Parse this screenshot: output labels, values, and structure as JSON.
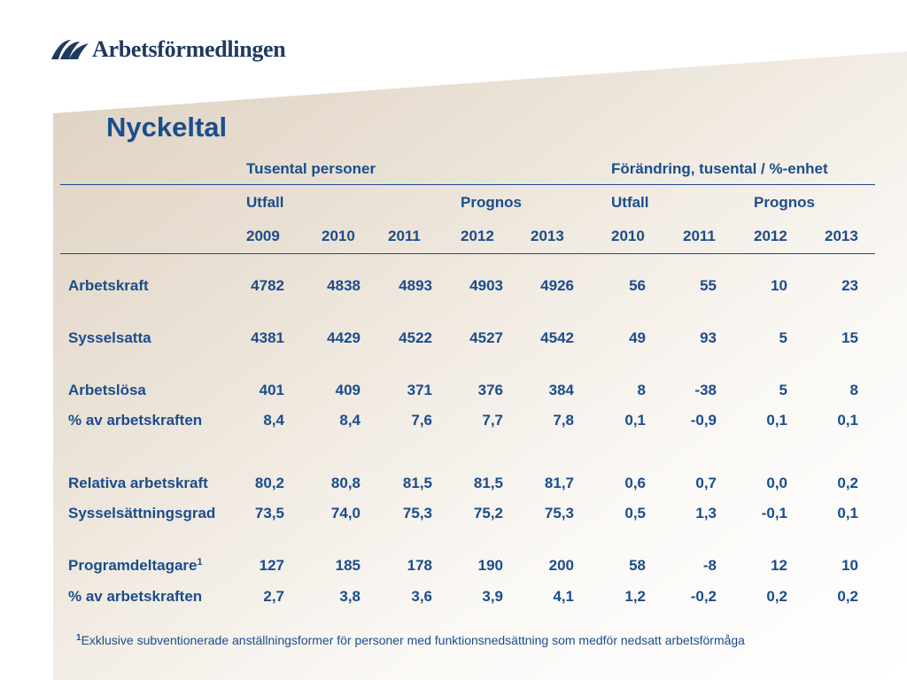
{
  "logo": {
    "text": "Arbetsförmedlingen"
  },
  "title": "Nyckeltal",
  "header": {
    "group1": "Tusental personer",
    "group2": "Förändring, tusental / %-enhet",
    "utfall": "Utfall",
    "prognos": "Prognos",
    "utfall2": "Utfall",
    "prognos2": "Prognos",
    "years": [
      "2009",
      "2010",
      "2011",
      "2012",
      "2013",
      "2010",
      "2011",
      "2012",
      "2013"
    ]
  },
  "rows": [
    {
      "label": "Arbetskraft",
      "values": [
        "4782",
        "4838",
        "4893",
        "4903",
        "4926",
        "56",
        "55",
        "10",
        "23"
      ]
    },
    {
      "label": "Sysselsatta",
      "values": [
        "4381",
        "4429",
        "4522",
        "4527",
        "4542",
        "49",
        "93",
        "5",
        "15"
      ]
    },
    {
      "label": "Arbetslösa",
      "values": [
        "401",
        "409",
        "371",
        "376",
        "384",
        "8",
        "-38",
        "5",
        "8"
      ]
    },
    {
      "label": "% av arbetskraften",
      "values": [
        "8,4",
        "8,4",
        "7,6",
        "7,7",
        "7,8",
        "0,1",
        "-0,9",
        "0,1",
        "0,1"
      ]
    },
    {
      "label": "Relativa arbetskraft",
      "values": [
        "80,2",
        "80,8",
        "81,5",
        "81,5",
        "81,7",
        "0,6",
        "0,7",
        "0,0",
        "0,2"
      ]
    },
    {
      "label": "Sysselsättningsgrad",
      "values": [
        "73,5",
        "74,0",
        "75,3",
        "75,2",
        "75,3",
        "0,5",
        "1,3",
        "-0,1",
        "0,1"
      ]
    },
    {
      "label": "Programdeltagare",
      "label_sup": "1",
      "values": [
        "127",
        "185",
        "178",
        "190",
        "200",
        "58",
        "-8",
        "12",
        "10"
      ]
    },
    {
      "label": "% av arbetskraften",
      "values": [
        "2,7",
        "3,8",
        "3,6",
        "3,9",
        "4,1",
        "1,2",
        "-0,2",
        "0,2",
        "0,2"
      ]
    }
  ],
  "footnote": {
    "mark": "1",
    "text": "Exklusive subventionerade anställningsformer för personer med funktionsnedsättning som medför nedsatt arbetsförmåga"
  },
  "colors": {
    "text": "#1a4d8c",
    "panel": "#e6dccf",
    "logo": "#1f3a60"
  }
}
